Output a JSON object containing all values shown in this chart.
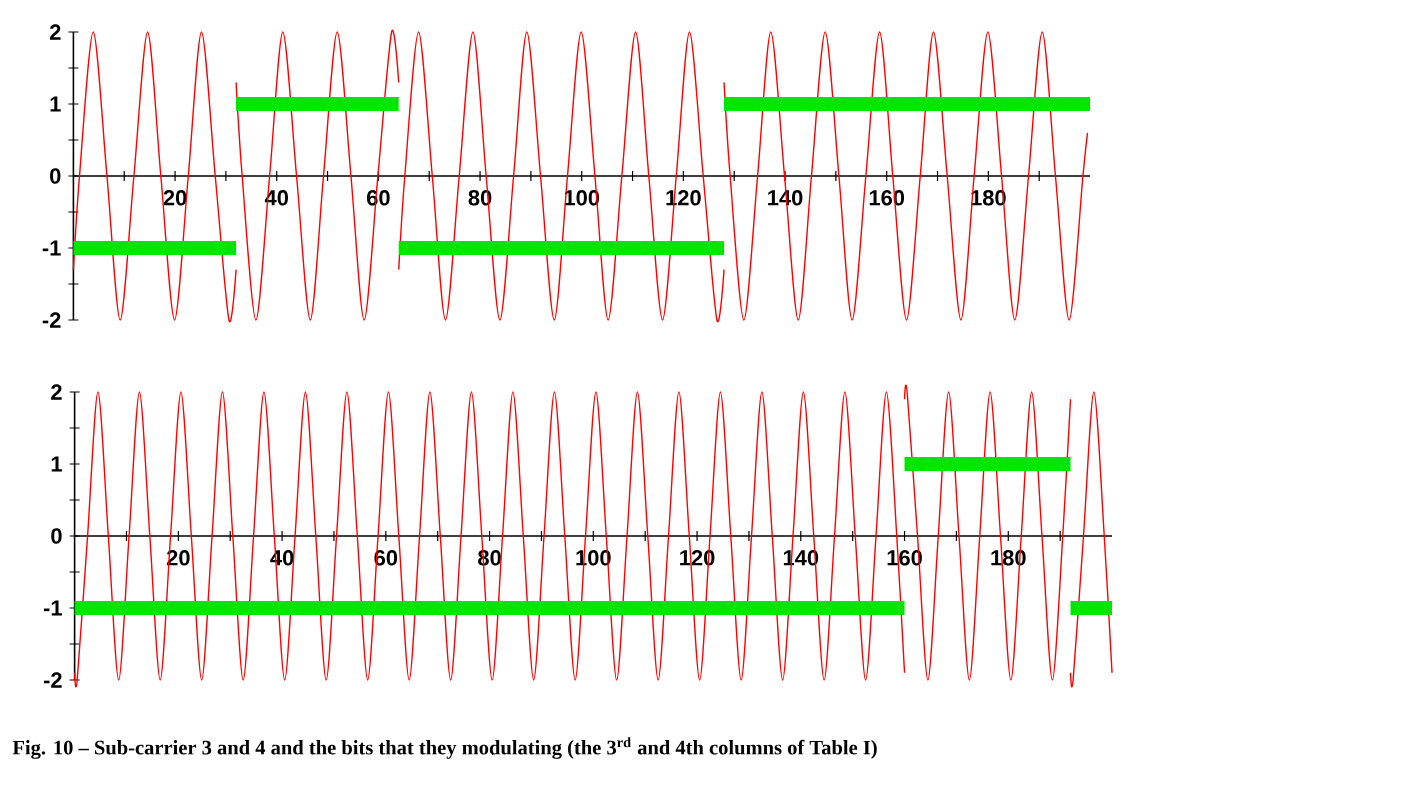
{
  "chart_data": [
    {
      "type": "line",
      "xlim": [
        0,
        200
      ],
      "ylim": [
        -2,
        2
      ],
      "xticks": [
        {
          "value": 10,
          "label": null
        },
        20,
        {
          "value": 30,
          "label": null
        },
        40,
        {
          "value": 50,
          "label": null
        },
        60,
        {
          "value": 70,
          "label": null
        },
        80,
        {
          "value": 90,
          "label": null
        },
        100,
        {
          "value": 110,
          "label": null
        },
        120,
        {
          "value": 130,
          "label": null
        },
        140,
        {
          "value": 150,
          "label": null
        },
        160,
        {
          "value": 170,
          "label": null
        },
        180,
        {
          "value": 190,
          "label": null
        }
      ],
      "yticks": [
        -2,
        {
          "value": -1.5,
          "label": null
        },
        -1,
        {
          "value": -0.5,
          "label": null
        },
        0,
        {
          "value": 0.5,
          "label": null
        },
        1,
        {
          "value": 1.5,
          "label": null
        },
        2
      ],
      "series": [
        {
          "color": "#ff0000",
          "x": [
            0,
            1.2,
            3.9,
            6.6,
            9.2,
            11.9,
            14.6,
            17.2,
            19.9,
            22.6,
            25.2,
            27.9,
            30.6,
            32,
            null,
            32,
            33.2,
            35.9,
            38.6,
            41.2,
            43.9,
            46.6,
            49.2,
            51.9,
            54.6,
            57.2,
            59.9,
            62.6,
            64,
            null,
            64,
            65.2,
            67.9,
            70.6,
            73.2,
            75.9,
            78.6,
            81.2,
            83.9,
            86.6,
            89.2,
            91.9,
            94.6,
            97.2,
            99.9,
            102.6,
            105.2,
            107.9,
            110.6,
            113.2,
            115.9,
            118.6,
            121.2,
            123.9,
            126.6,
            128,
            null,
            128,
            129.2,
            131.9,
            134.6,
            137.2,
            139.9,
            142.6,
            145.2,
            147.9,
            150.6,
            153.2,
            155.9,
            158.6,
            161.2,
            163.9,
            166.6,
            169.2,
            171.9,
            174.6,
            177.2,
            179.9,
            182.6,
            185.2,
            187.9,
            190.6,
            193.2,
            195.9,
            198.6,
            199.5
          ],
          "values": [
            -1.3,
            0,
            2,
            0,
            -2,
            0,
            2,
            0,
            -2,
            0,
            2,
            0,
            -2,
            -1.3,
            null,
            1.3,
            0,
            -2,
            0,
            2,
            0,
            -2,
            0,
            2,
            0,
            -2,
            0,
            2,
            1.3,
            null,
            -1.3,
            0,
            2,
            0,
            -2,
            0,
            2,
            0,
            -2,
            0,
            2,
            0,
            -2,
            0,
            2,
            0,
            -2,
            0,
            2,
            0,
            -2,
            0,
            2,
            0,
            -2,
            -1.3,
            null,
            1.3,
            0,
            -2,
            0,
            2,
            0,
            -2,
            0,
            2,
            0,
            -2,
            0,
            2,
            0,
            -2,
            0,
            2,
            0,
            -2,
            0,
            2,
            0,
            -2,
            0,
            2,
            0,
            -2,
            0,
            0.6
          ]
        },
        {
          "color": "#00e600",
          "x": [
            0,
            32,
            null,
            32,
            64,
            null,
            64,
            128,
            null,
            128,
            200
          ],
          "values": [
            -1,
            -1,
            null,
            1,
            1,
            null,
            -1,
            -1,
            null,
            1,
            1
          ]
        }
      ]
    },
    {
      "type": "line",
      "xlim": [
        0,
        200
      ],
      "ylim": [
        -2,
        2
      ],
      "xticks": [
        {
          "value": 10,
          "label": null
        },
        20,
        {
          "value": 30,
          "label": null
        },
        40,
        {
          "value": 50,
          "label": null
        },
        60,
        {
          "value": 70,
          "label": null
        },
        80,
        {
          "value": 90,
          "label": null
        },
        100,
        {
          "value": 110,
          "label": null
        },
        120,
        {
          "value": 130,
          "label": null
        },
        140,
        {
          "value": 150,
          "label": null
        },
        160,
        {
          "value": 170,
          "label": null
        },
        180,
        {
          "value": 190,
          "label": null
        }
      ],
      "yticks": [
        -2,
        {
          "value": -1.5,
          "label": null
        },
        -1,
        {
          "value": -0.5,
          "label": null
        },
        0,
        {
          "value": 0.5,
          "label": null
        },
        1,
        {
          "value": 1.5,
          "label": null
        },
        2
      ],
      "series": [
        {
          "color": "#ff0000",
          "x": [
            0,
            0.5,
            2.5,
            4.5,
            6.5,
            8.5,
            10.5,
            12.5,
            14.5,
            16.5,
            18.5,
            20.5,
            22.5,
            24.5,
            26.5,
            28.5,
            30.5,
            32.5,
            34.5,
            36.5,
            38.5,
            40.5,
            42.5,
            44.5,
            46.5,
            48.5,
            50.5,
            52.5,
            54.5,
            56.5,
            58.5,
            60.5,
            62.5,
            64.5,
            66.5,
            68.5,
            70.5,
            72.5,
            74.5,
            76.5,
            78.5,
            80.5,
            82.5,
            84.5,
            86.5,
            88.5,
            90.5,
            92.5,
            94.5,
            96.5,
            98.5,
            100.5,
            102.5,
            104.5,
            106.5,
            108.5,
            110.5,
            112.5,
            114.5,
            116.5,
            118.5,
            120.5,
            122.5,
            124.5,
            126.5,
            128.5,
            130.5,
            132.5,
            134.5,
            136.5,
            138.5,
            140.5,
            142.5,
            144.5,
            146.5,
            148.5,
            150.5,
            152.5,
            154.5,
            156.5,
            158.5,
            160,
            null,
            160,
            160.5,
            162.5,
            164.5,
            166.5,
            168.5,
            170.5,
            172.5,
            174.5,
            176.5,
            178.5,
            180.5,
            182.5,
            184.5,
            186.5,
            188.5,
            190.5,
            192,
            null,
            192,
            192.5,
            194.5,
            196.5,
            198.5,
            200
          ],
          "values": [
            -1.9,
            -2,
            0,
            2,
            0,
            -2,
            0,
            2,
            0,
            -2,
            0,
            2,
            0,
            -2,
            0,
            2,
            0,
            -2,
            0,
            2,
            0,
            -2,
            0,
            2,
            0,
            -2,
            0,
            2,
            0,
            -2,
            0,
            2,
            0,
            -2,
            0,
            2,
            0,
            -2,
            0,
            2,
            0,
            -2,
            0,
            2,
            0,
            -2,
            0,
            2,
            0,
            -2,
            0,
            2,
            0,
            -2,
            0,
            2,
            0,
            -2,
            0,
            2,
            0,
            -2,
            0,
            2,
            0,
            -2,
            0,
            2,
            0,
            -2,
            0,
            2,
            0,
            -2,
            0,
            2,
            0,
            -2,
            0,
            2,
            0,
            -1.9,
            null,
            1.9,
            2,
            0,
            -2,
            0,
            2,
            0,
            -2,
            0,
            2,
            0,
            -2,
            0,
            2,
            0,
            -2,
            0,
            1.9,
            null,
            -1.9,
            -2,
            0,
            2,
            0,
            -1.9
          ]
        },
        {
          "color": "#00e600",
          "x": [
            0,
            160,
            null,
            160,
            192,
            null,
            192,
            200
          ],
          "values": [
            -1,
            -1,
            null,
            1,
            1,
            null,
            -1,
            -1
          ]
        }
      ],
      "annotations": [
        "**Fig. 10 – Sub-carrier 3 and 4 and the bits that they modulating (the 3$^{rd}$ and 4th columns of Table I)**"
      ]
    }
  ]
}
